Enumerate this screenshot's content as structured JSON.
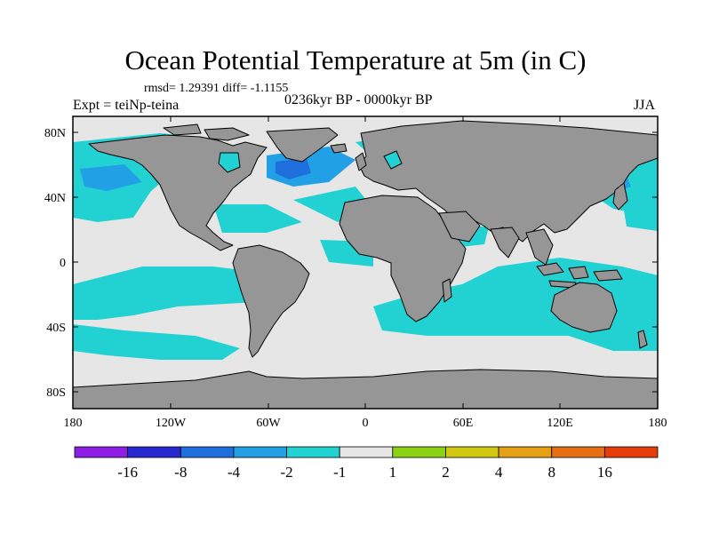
{
  "title": "Ocean Potential Temperature at 5m (in C)",
  "stats": "rmsd= 1.29391 diff= -1.1155",
  "experiment": "Expt = teiNp-teina",
  "period": "0236kyr BP - 0000kyr BP",
  "season": "JJA",
  "axes": {
    "y_ticks": [
      "80N",
      "40N",
      "0",
      "40S",
      "80S"
    ],
    "x_ticks": [
      "180",
      "120W",
      "60W",
      "0",
      "60E",
      "120E",
      "180"
    ]
  },
  "colorbar": {
    "colors": [
      "#8c1ee6",
      "#2828d2",
      "#1e6edc",
      "#22a0e6",
      "#22d2d2",
      "#e6e6e6",
      "#8cd214",
      "#d2c814",
      "#e6a014",
      "#e66e14",
      "#e63c0a"
    ],
    "labels": [
      "-16",
      "-8",
      "-4",
      "-2",
      "-1",
      "1",
      "2",
      "4",
      "8",
      "16"
    ]
  },
  "palette": {
    "land": "#969696",
    "neutral": "#e6e6e6",
    "light_cooling": "#22d2d2",
    "moderate_cooling": "#22a0e6",
    "strong_cooling": "#1e6edc",
    "warming": "#8cd214"
  }
}
